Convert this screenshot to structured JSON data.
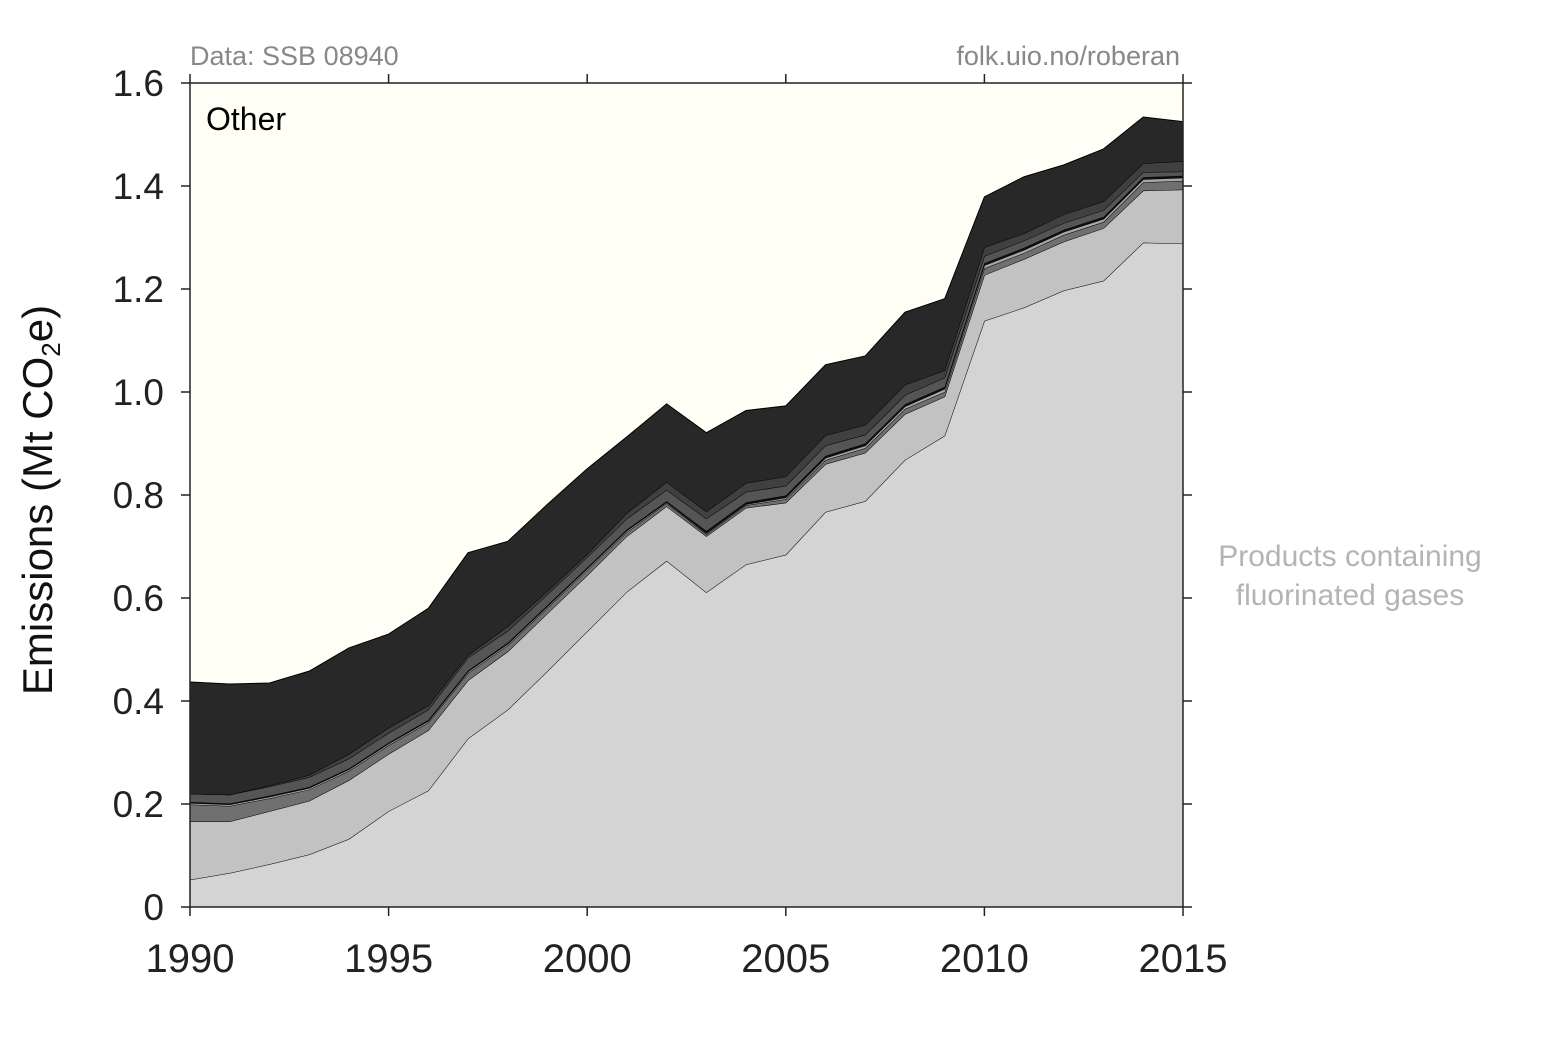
{
  "chart_data": {
    "type": "area",
    "source_left": "Data: SSB 08940",
    "source_right": "folk.uio.no/roberan",
    "ylabel_prefix": "Emissions (Mt CO",
    "ylabel_sub": "2",
    "ylabel_suffix": "e)",
    "xlim": [
      1990,
      2015
    ],
    "ylim": [
      0,
      1.6
    ],
    "xticks": [
      1990,
      1995,
      2000,
      2005,
      2010,
      2015
    ],
    "yticks": [
      0,
      0.2,
      0.4,
      0.6,
      0.8,
      1.0,
      1.2,
      1.4,
      1.6
    ],
    "ytick_labels": [
      "0",
      "0.2",
      "0.4",
      "0.6",
      "0.8",
      "1.0",
      "1.2",
      "1.4",
      "1.6"
    ],
    "plot_background": "#fffff5",
    "annotation_top": "Other",
    "side_label_line1": "Products containing",
    "side_label_line2": "fluorinated gases",
    "x": [
      1990,
      1991,
      1992,
      1993,
      1994,
      1995,
      1996,
      1997,
      1998,
      1999,
      2000,
      2001,
      2002,
      2003,
      2004,
      2005,
      2006,
      2007,
      2008,
      2009,
      2010,
      2011,
      2012,
      2013,
      2014,
      2015
    ],
    "cumulative_layers": [
      {
        "color": "#d4d4d4",
        "values": [
          0.053,
          0.066,
          0.083,
          0.102,
          0.132,
          0.186,
          0.226,
          0.327,
          0.383,
          0.458,
          0.535,
          0.612,
          0.672,
          0.611,
          0.665,
          0.684,
          0.767,
          0.788,
          0.868,
          0.915,
          1.138,
          1.164,
          1.197,
          1.216,
          1.29,
          1.288
        ]
      },
      {
        "color": "#c2c2c2",
        "values": [
          0.166,
          0.166,
          0.186,
          0.206,
          0.246,
          0.297,
          0.343,
          0.44,
          0.496,
          0.57,
          0.644,
          0.72,
          0.778,
          0.72,
          0.775,
          0.785,
          0.86,
          0.882,
          0.957,
          0.991,
          1.227,
          1.258,
          1.292,
          1.318,
          1.391,
          1.393
        ]
      },
      {
        "color": "#707070",
        "values": [
          0.199,
          0.196,
          0.211,
          0.228,
          0.264,
          0.314,
          0.358,
          0.454,
          0.508,
          0.581,
          0.654,
          0.728,
          0.784,
          0.724,
          0.78,
          0.792,
          0.868,
          0.891,
          0.967,
          1.0,
          1.24,
          1.27,
          1.305,
          1.33,
          1.407,
          1.41
        ]
      },
      {
        "color": "#a6a6a6",
        "values": [
          0.202,
          0.199,
          0.214,
          0.231,
          0.267,
          0.317,
          0.361,
          0.457,
          0.511,
          0.584,
          0.657,
          0.731,
          0.786,
          0.726,
          0.782,
          0.795,
          0.872,
          0.896,
          0.972,
          1.006,
          1.246,
          1.276,
          1.311,
          1.336,
          1.413,
          1.416
        ]
      },
      {
        "color": "#111111",
        "values": [
          0.204,
          0.201,
          0.216,
          0.233,
          0.269,
          0.319,
          0.363,
          0.459,
          0.513,
          0.586,
          0.659,
          0.733,
          0.788,
          0.73,
          0.786,
          0.799,
          0.876,
          0.9,
          0.976,
          1.01,
          1.25,
          1.28,
          1.315,
          1.34,
          1.417,
          1.42
        ]
      },
      {
        "color": "#555555",
        "values": [
          0.22,
          0.218,
          0.234,
          0.252,
          0.288,
          0.338,
          0.383,
          0.484,
          0.536,
          0.607,
          0.679,
          0.754,
          0.81,
          0.754,
          0.806,
          0.818,
          0.896,
          0.917,
          0.994,
          1.028,
          1.264,
          1.294,
          1.328,
          1.353,
          1.427,
          1.428
        ]
      },
      {
        "color": "#404040",
        "values": [
          0.22,
          0.218,
          0.236,
          0.256,
          0.297,
          0.348,
          0.391,
          0.489,
          0.545,
          0.613,
          0.685,
          0.765,
          0.825,
          0.768,
          0.823,
          0.836,
          0.916,
          0.936,
          1.014,
          1.042,
          1.281,
          1.308,
          1.345,
          1.37,
          1.444,
          1.448
        ]
      },
      {
        "color": "#282828",
        "values": [
          0.437,
          0.433,
          0.435,
          0.458,
          0.503,
          0.53,
          0.58,
          0.688,
          0.71,
          0.782,
          0.851,
          0.913,
          0.977,
          0.921,
          0.964,
          0.973,
          1.053,
          1.07,
          1.155,
          1.181,
          1.379,
          1.418,
          1.441,
          1.472,
          1.534,
          1.525
        ]
      }
    ]
  }
}
